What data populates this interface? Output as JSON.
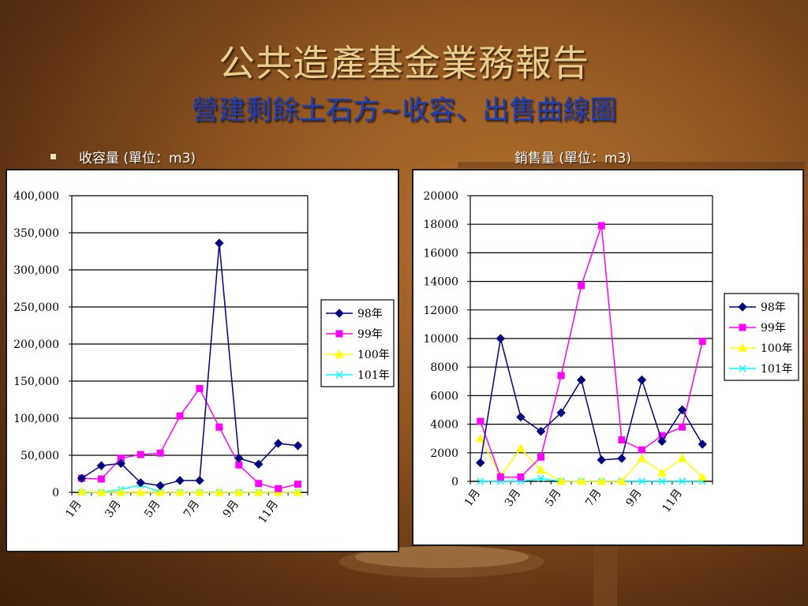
{
  "title": "公共造產基金業務報告",
  "subtitle": "營建剩餘土石方~收容、出售曲線圖",
  "captions": {
    "left": "收容量 (單位：m3)",
    "right": "銷售量 (單位：m3)"
  },
  "colors": {
    "title": "#e8cf8c",
    "subtitle": "#1a3fbf",
    "s98": "#000080",
    "s99": "#ff00ff",
    "s100": "#ffff00",
    "s101": "#00ffff"
  },
  "chart_data": [
    {
      "type": "line",
      "title": "",
      "xlabel": "",
      "ylabel": "",
      "x": [
        1,
        2,
        3,
        4,
        5,
        6,
        7,
        8,
        9,
        10,
        11,
        12
      ],
      "x_tick_labels": [
        "1月",
        "3月",
        "5月",
        "7月",
        "9月",
        "11月"
      ],
      "x_tick_at": [
        1,
        3,
        5,
        7,
        9,
        11
      ],
      "ylim": [
        0,
        400000
      ],
      "y_ticks": [
        0,
        50000,
        100000,
        150000,
        200000,
        250000,
        300000,
        350000,
        400000
      ],
      "y_tick_labels": [
        "0",
        "50,000",
        "100,000",
        "150,000",
        "200,000",
        "250,000",
        "300,000",
        "350,000",
        "400,000"
      ],
      "grid": true,
      "legend_position": "right",
      "series": [
        {
          "name": "98年",
          "marker": "diamond",
          "color_key": "s98",
          "values": [
            19000,
            36000,
            39000,
            13000,
            9000,
            16000,
            16000,
            336000,
            46000,
            38000,
            66000,
            63000
          ]
        },
        {
          "name": "99年",
          "marker": "square",
          "color_key": "s99",
          "values": [
            19000,
            18000,
            46000,
            51000,
            53000,
            103000,
            140000,
            88000,
            37000,
            12000,
            5000,
            11000
          ]
        },
        {
          "name": "100年",
          "marker": "triangle",
          "color_key": "s100",
          "values": [
            1000,
            0,
            0,
            0,
            0,
            0,
            0,
            0,
            0,
            0,
            0,
            0
          ]
        },
        {
          "name": "101年",
          "marker": "x",
          "color_key": "s101",
          "values": [
            0,
            0,
            4000,
            10000,
            0,
            0,
            0,
            0,
            0,
            0,
            0,
            0
          ]
        }
      ]
    },
    {
      "type": "line",
      "title": "",
      "xlabel": "",
      "ylabel": "",
      "x": [
        1,
        2,
        3,
        4,
        5,
        6,
        7,
        8,
        9,
        10,
        11,
        12
      ],
      "x_tick_labels": [
        "1月",
        "3月",
        "5月",
        "7月",
        "9月",
        "11月"
      ],
      "x_tick_at": [
        1,
        3,
        5,
        7,
        9,
        11
      ],
      "ylim": [
        0,
        20000
      ],
      "y_ticks": [
        0,
        2000,
        4000,
        6000,
        8000,
        10000,
        12000,
        14000,
        16000,
        18000,
        20000
      ],
      "y_tick_labels": [
        "0",
        "2000",
        "4000",
        "6000",
        "8000",
        "10000",
        "12000",
        "14000",
        "16000",
        "18000",
        "20000"
      ],
      "grid": true,
      "legend_position": "right",
      "series": [
        {
          "name": "98年",
          "marker": "diamond",
          "color_key": "s98",
          "values": [
            1300,
            10000,
            4500,
            3500,
            4800,
            7100,
            1500,
            1600,
            7100,
            2800,
            5000,
            2600
          ]
        },
        {
          "name": "99年",
          "marker": "square",
          "color_key": "s99",
          "values": [
            4200,
            300,
            300,
            1700,
            7400,
            13700,
            17900,
            2900,
            2200,
            3200,
            3800,
            9800
          ]
        },
        {
          "name": "100年",
          "marker": "triangle",
          "color_key": "s100",
          "values": [
            3000,
            400,
            2300,
            800,
            0,
            0,
            0,
            0,
            1600,
            600,
            1600,
            300
          ]
        },
        {
          "name": "101年",
          "marker": "x",
          "color_key": "s101",
          "values": [
            0,
            0,
            0,
            200,
            0,
            0,
            0,
            0,
            0,
            0,
            0,
            0
          ]
        }
      ]
    }
  ]
}
